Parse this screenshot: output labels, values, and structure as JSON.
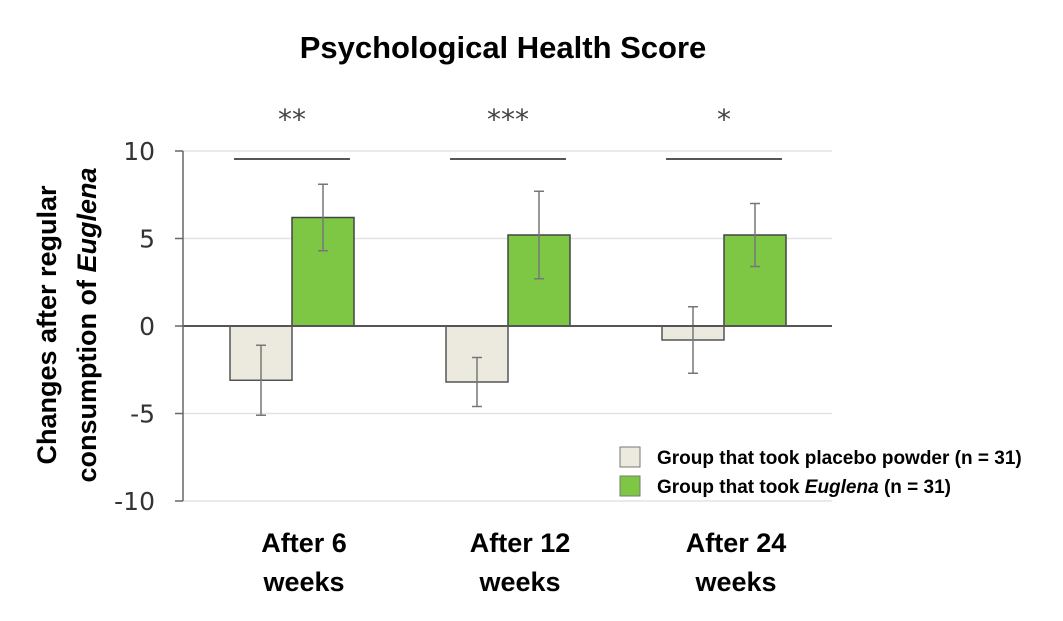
{
  "chart_data": {
    "type": "bar",
    "title": "Psychological Health Score",
    "ylabel_line1": "Changes after regular",
    "ylabel_line2_prefix": "consumption of ",
    "ylabel_line2_italic": "Euglena",
    "ylim": [
      -10,
      10
    ],
    "yticks": [
      {
        "value": 10,
        "label": "10"
      },
      {
        "value": 5,
        "label": "5"
      },
      {
        "value": 0,
        "label": "0"
      },
      {
        "value": -5,
        "label": "-5"
      },
      {
        "value": -10,
        "label": "-10"
      }
    ],
    "grid": true,
    "categories": [
      {
        "line1": "After 6",
        "line2": "weeks",
        "significance": "**"
      },
      {
        "line1": "After 12",
        "line2": "weeks",
        "significance": "***"
      },
      {
        "line1": "After 24",
        "line2": "weeks",
        "significance": "*"
      }
    ],
    "series": [
      {
        "legend_text": "Group that took placebo powder (n = 31)",
        "legend_prefix": "Group that took placebo powder (n = 31)",
        "legend_italic": "",
        "legend_suffix": "",
        "color": "#ece9df",
        "stroke": "#555555",
        "values": [
          -3.1,
          -3.2,
          -0.8
        ],
        "error": [
          2.0,
          1.4,
          1.9
        ]
      },
      {
        "legend_text": "Group that took Euglena (n = 31)",
        "legend_prefix": "Group that took ",
        "legend_italic": "Euglena",
        "legend_suffix": " (n = 31)",
        "color": "#7dc744",
        "stroke": "#444444",
        "values": [
          6.2,
          5.2,
          5.2
        ],
        "error": [
          1.9,
          2.5,
          1.8
        ]
      }
    ],
    "legend_position": "bottom-right"
  }
}
